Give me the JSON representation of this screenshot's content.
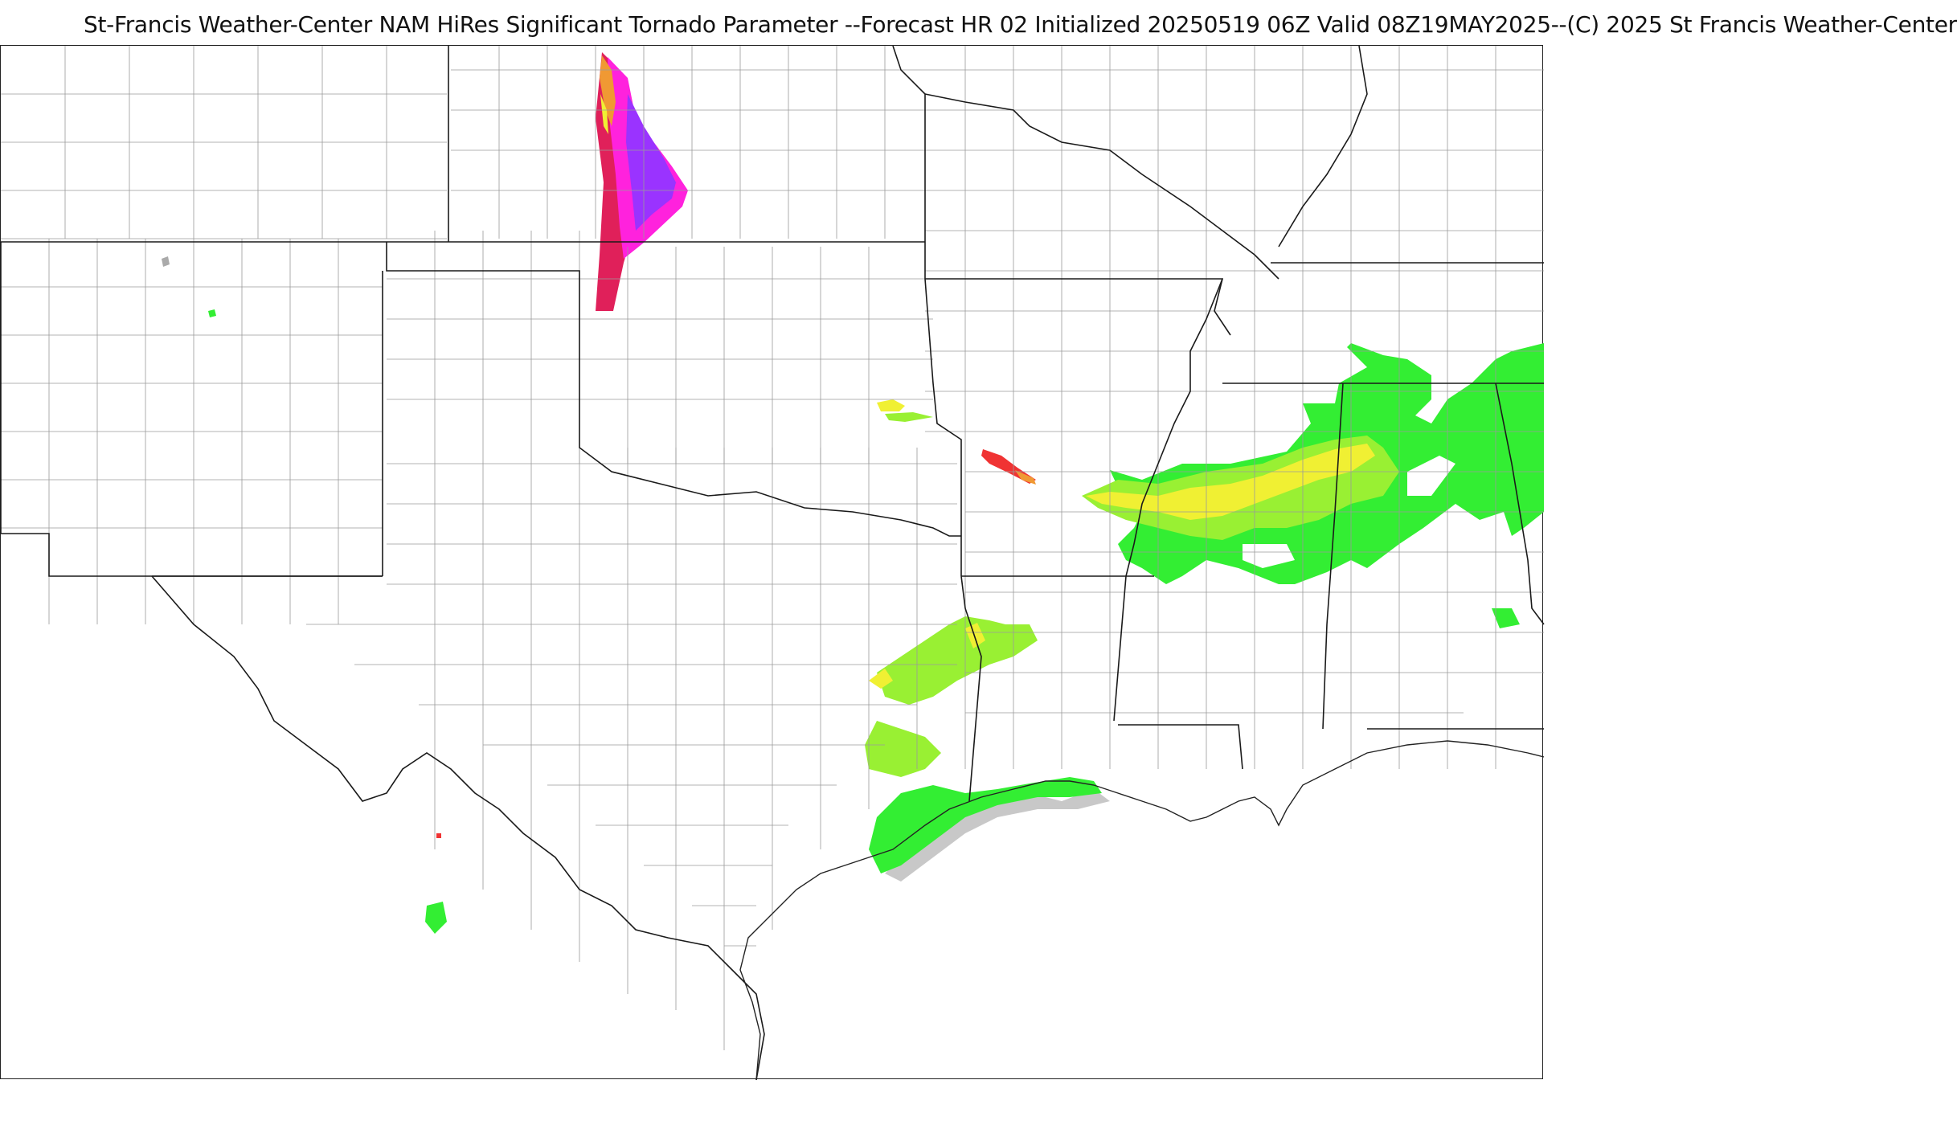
{
  "title": "St-Francis Weather-Center NAM HiRes Significant Tornado Parameter --Forecast HR 02 Initialized 20250519 06Z Valid 08Z19MAY2025--(C) 2025 St Francis Weather-Center",
  "map": {
    "product": "Significant Tornado Parameter",
    "colors": {
      "background": "#ffffff",
      "county_lines": "#9a9a9a",
      "state_lines": "#1a1a1a",
      "stp_gray": "#c8c8c8",
      "stp_green": "#33ee33",
      "stp_lightgreen": "#99f033",
      "stp_yellow": "#f0f033",
      "stp_orange": "#f09933",
      "stp_red": "#f03333",
      "stp_crimson": "#e0205a",
      "stp_magenta": "#ff22dd",
      "stp_purple": "#9a33ff"
    }
  }
}
